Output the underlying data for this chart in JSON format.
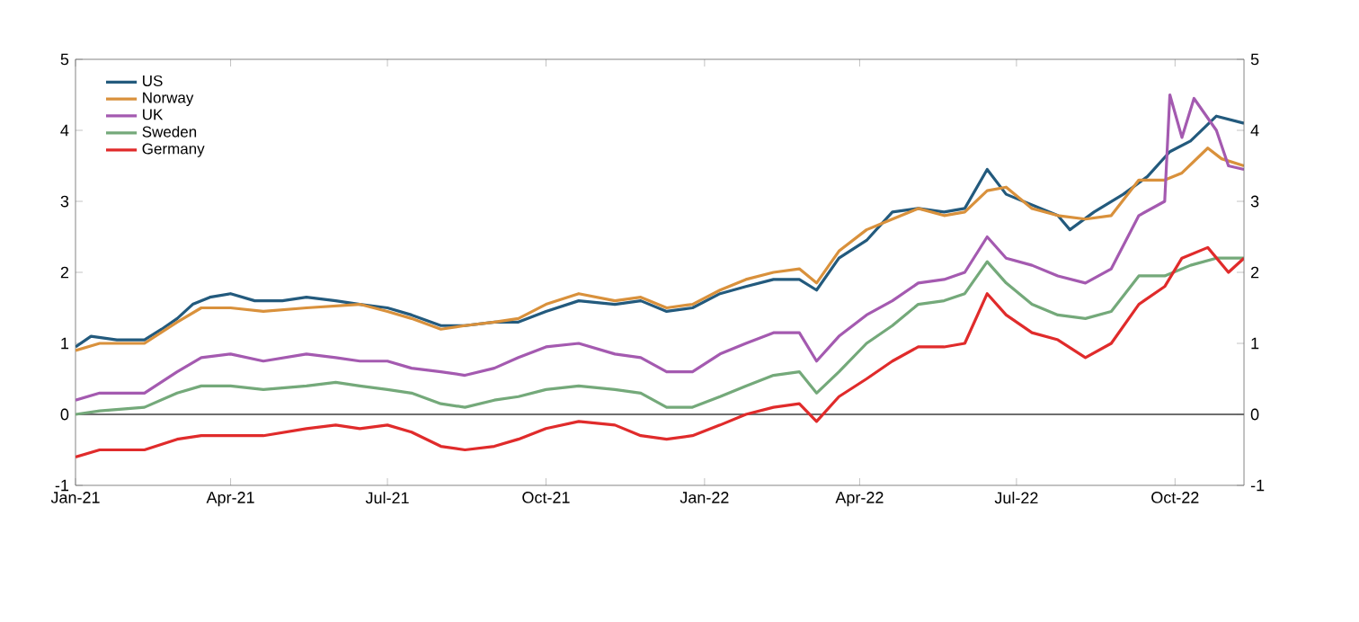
{
  "chart_data": {
    "type": "line",
    "legend": "top left",
    "grid": false,
    "marker": "none",
    "line_style": "solid",
    "xlim": [
      "2021-01-01",
      "2022-11-10"
    ],
    "xticks": [
      {
        "value": "2021-01-01",
        "label": "Jan-21"
      },
      {
        "value": "2021-04-01",
        "label": "Apr-21"
      },
      {
        "value": "2021-07-01",
        "label": "Jul-21"
      },
      {
        "value": "2021-10-01",
        "label": "Oct-21"
      },
      {
        "value": "2022-01-01",
        "label": "Jan-22"
      },
      {
        "value": "2022-04-01",
        "label": "Apr-22"
      },
      {
        "value": "2022-07-01",
        "label": "Jul-22"
      },
      {
        "value": "2022-10-01",
        "label": "Oct-22"
      }
    ],
    "ylim": [
      -1,
      5
    ],
    "yticks": [
      -1,
      0,
      1,
      2,
      3,
      4,
      5
    ],
    "y2lim": [
      -1,
      5
    ],
    "y2ticks": [
      -1,
      0,
      1,
      2,
      3,
      4,
      5
    ],
    "ref_lines": [
      {
        "axis": "y",
        "value": 0,
        "color": "#6e6e6e"
      }
    ],
    "series": [
      {
        "name": "US",
        "color": "#235a7d",
        "x": [
          "2021-01-01",
          "2021-01-10",
          "2021-01-25",
          "2021-02-10",
          "2021-02-20",
          "2021-03-01",
          "2021-03-10",
          "2021-03-20",
          "2021-04-01",
          "2021-04-15",
          "2021-05-01",
          "2021-05-15",
          "2021-06-01",
          "2021-06-15",
          "2021-07-01",
          "2021-07-15",
          "2021-08-01",
          "2021-08-15",
          "2021-09-01",
          "2021-09-15",
          "2021-10-01",
          "2021-10-20",
          "2021-11-10",
          "2021-11-25",
          "2021-12-10",
          "2021-12-25",
          "2022-01-10",
          "2022-01-25",
          "2022-02-10",
          "2022-02-25",
          "2022-03-07",
          "2022-03-20",
          "2022-04-05",
          "2022-04-20",
          "2022-05-05",
          "2022-05-20",
          "2022-06-01",
          "2022-06-14",
          "2022-06-25",
          "2022-07-10",
          "2022-07-25",
          "2022-08-01",
          "2022-08-15",
          "2022-09-01",
          "2022-09-15",
          "2022-09-28",
          "2022-10-10",
          "2022-10-25",
          "2022-11-10"
        ],
        "values": [
          0.95,
          1.1,
          1.05,
          1.05,
          1.2,
          1.35,
          1.55,
          1.65,
          1.7,
          1.6,
          1.6,
          1.65,
          1.6,
          1.55,
          1.5,
          1.4,
          1.25,
          1.25,
          1.3,
          1.3,
          1.45,
          1.6,
          1.55,
          1.6,
          1.45,
          1.5,
          1.7,
          1.8,
          1.9,
          1.9,
          1.75,
          2.2,
          2.45,
          2.85,
          2.9,
          2.85,
          2.9,
          3.45,
          3.1,
          2.95,
          2.8,
          2.6,
          2.85,
          3.1,
          3.35,
          3.7,
          3.85,
          4.2,
          4.1
        ]
      },
      {
        "name": "Norway",
        "color": "#d9913c",
        "x": [
          "2021-01-01",
          "2021-01-15",
          "2021-02-10",
          "2021-03-01",
          "2021-03-15",
          "2021-04-01",
          "2021-04-20",
          "2021-05-15",
          "2021-06-15",
          "2021-07-01",
          "2021-07-15",
          "2021-08-01",
          "2021-08-15",
          "2021-09-01",
          "2021-09-15",
          "2021-10-01",
          "2021-10-20",
          "2021-11-10",
          "2021-11-25",
          "2021-12-10",
          "2021-12-25",
          "2022-01-10",
          "2022-01-25",
          "2022-02-10",
          "2022-02-25",
          "2022-03-07",
          "2022-03-20",
          "2022-04-05",
          "2022-04-20",
          "2022-05-05",
          "2022-05-20",
          "2022-06-01",
          "2022-06-14",
          "2022-06-25",
          "2022-07-10",
          "2022-07-25",
          "2022-08-10",
          "2022-08-25",
          "2022-09-10",
          "2022-09-25",
          "2022-10-05",
          "2022-10-20",
          "2022-10-28",
          "2022-11-10"
        ],
        "values": [
          0.9,
          1.0,
          1.0,
          1.3,
          1.5,
          1.5,
          1.45,
          1.5,
          1.55,
          1.45,
          1.35,
          1.2,
          1.25,
          1.3,
          1.35,
          1.55,
          1.7,
          1.6,
          1.65,
          1.5,
          1.55,
          1.75,
          1.9,
          2.0,
          2.05,
          1.85,
          2.3,
          2.6,
          2.75,
          2.9,
          2.8,
          2.85,
          3.15,
          3.2,
          2.9,
          2.8,
          2.75,
          2.8,
          3.3,
          3.3,
          3.4,
          3.75,
          3.6,
          3.5
        ]
      },
      {
        "name": "UK",
        "color": "#a45ab0",
        "x": [
          "2021-01-01",
          "2021-01-15",
          "2021-02-10",
          "2021-03-01",
          "2021-03-15",
          "2021-04-01",
          "2021-04-20",
          "2021-05-15",
          "2021-06-01",
          "2021-06-15",
          "2021-07-01",
          "2021-07-15",
          "2021-08-01",
          "2021-08-15",
          "2021-09-01",
          "2021-09-15",
          "2021-10-01",
          "2021-10-20",
          "2021-11-10",
          "2021-11-25",
          "2021-12-10",
          "2021-12-25",
          "2022-01-10",
          "2022-01-25",
          "2022-02-10",
          "2022-02-25",
          "2022-03-07",
          "2022-03-20",
          "2022-04-05",
          "2022-04-20",
          "2022-05-05",
          "2022-05-20",
          "2022-06-01",
          "2022-06-14",
          "2022-06-25",
          "2022-07-10",
          "2022-07-25",
          "2022-08-10",
          "2022-08-25",
          "2022-09-10",
          "2022-09-25",
          "2022-09-28",
          "2022-10-05",
          "2022-10-12",
          "2022-10-25",
          "2022-11-01",
          "2022-11-10"
        ],
        "values": [
          0.2,
          0.3,
          0.3,
          0.6,
          0.8,
          0.85,
          0.75,
          0.85,
          0.8,
          0.75,
          0.75,
          0.65,
          0.6,
          0.55,
          0.65,
          0.8,
          0.95,
          1.0,
          0.85,
          0.8,
          0.6,
          0.6,
          0.85,
          1.0,
          1.15,
          1.15,
          0.75,
          1.1,
          1.4,
          1.6,
          1.85,
          1.9,
          2.0,
          2.5,
          2.2,
          2.1,
          1.95,
          1.85,
          2.05,
          2.8,
          3.0,
          4.5,
          3.9,
          4.45,
          4.0,
          3.5,
          3.45
        ]
      },
      {
        "name": "Sweden",
        "color": "#74a97a",
        "x": [
          "2021-01-01",
          "2021-01-15",
          "2021-02-10",
          "2021-03-01",
          "2021-03-15",
          "2021-04-01",
          "2021-04-20",
          "2021-05-15",
          "2021-06-01",
          "2021-06-15",
          "2021-07-01",
          "2021-07-15",
          "2021-08-01",
          "2021-08-15",
          "2021-09-01",
          "2021-09-15",
          "2021-10-01",
          "2021-10-20",
          "2021-11-10",
          "2021-11-25",
          "2021-12-10",
          "2021-12-25",
          "2022-01-10",
          "2022-01-25",
          "2022-02-10",
          "2022-02-25",
          "2022-03-07",
          "2022-03-20",
          "2022-04-05",
          "2022-04-20",
          "2022-05-05",
          "2022-05-20",
          "2022-06-01",
          "2022-06-14",
          "2022-06-25",
          "2022-07-10",
          "2022-07-25",
          "2022-08-10",
          "2022-08-25",
          "2022-09-10",
          "2022-09-25",
          "2022-10-10",
          "2022-10-25",
          "2022-11-10"
        ],
        "values": [
          0.0,
          0.05,
          0.1,
          0.3,
          0.4,
          0.4,
          0.35,
          0.4,
          0.45,
          0.4,
          0.35,
          0.3,
          0.15,
          0.1,
          0.2,
          0.25,
          0.35,
          0.4,
          0.35,
          0.3,
          0.1,
          0.1,
          0.25,
          0.4,
          0.55,
          0.6,
          0.3,
          0.6,
          1.0,
          1.25,
          1.55,
          1.6,
          1.7,
          2.15,
          1.85,
          1.55,
          1.4,
          1.35,
          1.45,
          1.95,
          1.95,
          2.1,
          2.2,
          2.2
        ]
      },
      {
        "name": "Germany",
        "color": "#e02b2b",
        "x": [
          "2021-01-01",
          "2021-01-15",
          "2021-02-10",
          "2021-03-01",
          "2021-03-15",
          "2021-04-01",
          "2021-04-20",
          "2021-05-15",
          "2021-06-01",
          "2021-06-15",
          "2021-07-01",
          "2021-07-15",
          "2021-08-01",
          "2021-08-15",
          "2021-09-01",
          "2021-09-15",
          "2021-10-01",
          "2021-10-20",
          "2021-11-10",
          "2021-11-25",
          "2021-12-10",
          "2021-12-25",
          "2022-01-10",
          "2022-01-25",
          "2022-02-10",
          "2022-02-25",
          "2022-03-07",
          "2022-03-20",
          "2022-04-05",
          "2022-04-20",
          "2022-05-05",
          "2022-05-20",
          "2022-06-01",
          "2022-06-14",
          "2022-06-25",
          "2022-07-10",
          "2022-07-25",
          "2022-08-10",
          "2022-08-25",
          "2022-09-10",
          "2022-09-25",
          "2022-10-05",
          "2022-10-20",
          "2022-11-01",
          "2022-11-10"
        ],
        "values": [
          -0.6,
          -0.5,
          -0.5,
          -0.35,
          -0.3,
          -0.3,
          -0.3,
          -0.2,
          -0.15,
          -0.2,
          -0.15,
          -0.25,
          -0.45,
          -0.5,
          -0.45,
          -0.35,
          -0.2,
          -0.1,
          -0.15,
          -0.3,
          -0.35,
          -0.3,
          -0.15,
          0.0,
          0.1,
          0.15,
          -0.1,
          0.25,
          0.5,
          0.75,
          0.95,
          0.95,
          1.0,
          1.7,
          1.4,
          1.15,
          1.05,
          0.8,
          1.0,
          1.55,
          1.8,
          2.2,
          2.35,
          2.0,
          2.2
        ]
      }
    ]
  }
}
